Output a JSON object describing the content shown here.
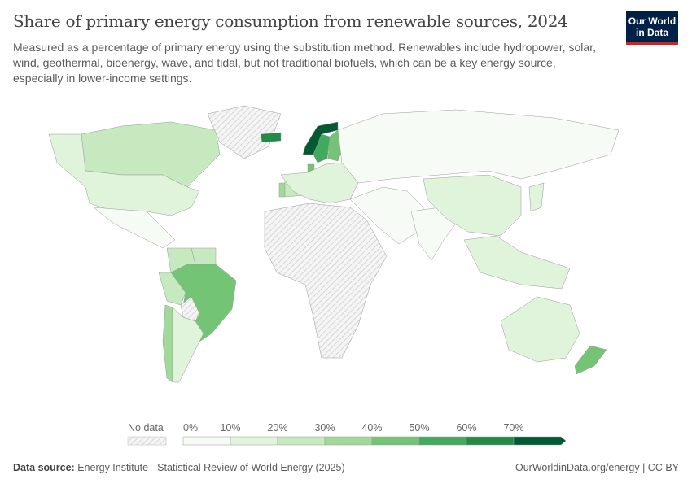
{
  "header": {
    "title": "Share of primary energy consumption from renewable sources, 2024",
    "subtitle": "Measured as a percentage of primary energy using the substitution method. Renewables include hydropower, solar, wind, geothermal, bioenergy, wave, and tidal, but not traditional biofuels, which can be a key energy source, especially in lower-income settings.",
    "logo_text": "Our World in Data"
  },
  "legend": {
    "no_data_label": "No data",
    "ticks": [
      "0%",
      "10%",
      "20%",
      "30%",
      "40%",
      "50%",
      "60%",
      "70%"
    ],
    "colors": [
      "#f7fbf5",
      "#e0f3db",
      "#c7e9c0",
      "#a1d99b",
      "#74c476",
      "#41ab5d",
      "#238b45",
      "#005a32"
    ],
    "no_data_pattern": "hatched-gray"
  },
  "footer": {
    "source_label": "Data source:",
    "source_text": "Energy Institute - Statistical Review of World Energy (2025)",
    "link": "OurWorldinData.org/energy | CC BY"
  },
  "chart_data": {
    "type": "choropleth",
    "year": 2024,
    "unit": "%",
    "bins": [
      0,
      10,
      20,
      30,
      40,
      50,
      60,
      70
    ],
    "countries": [
      {
        "name": "Canada",
        "value": 28
      },
      {
        "name": "United States",
        "value": 10
      },
      {
        "name": "Mexico",
        "value": 7
      },
      {
        "name": "Colombia",
        "value": 28
      },
      {
        "name": "Venezuela",
        "value": 25
      },
      {
        "name": "Peru",
        "value": 25
      },
      {
        "name": "Brazil",
        "value": 48
      },
      {
        "name": "Chile",
        "value": 32
      },
      {
        "name": "Argentina",
        "value": 12
      },
      {
        "name": "Bolivia",
        "value": null
      },
      {
        "name": "Greenland",
        "value": null
      },
      {
        "name": "Iceland",
        "value": 65
      },
      {
        "name": "Norway",
        "value": 72
      },
      {
        "name": "Sweden",
        "value": 55
      },
      {
        "name": "Finland",
        "value": 45
      },
      {
        "name": "Denmark",
        "value": 42
      },
      {
        "name": "Austria",
        "value": 35
      },
      {
        "name": "Portugal",
        "value": 32
      },
      {
        "name": "Spain",
        "value": 25
      },
      {
        "name": "Europe (other)",
        "value": 15
      },
      {
        "name": "Russia",
        "value": 6
      },
      {
        "name": "Middle East",
        "value": 2
      },
      {
        "name": "Africa",
        "value": null
      },
      {
        "name": "India",
        "value": 9
      },
      {
        "name": "China",
        "value": 17
      },
      {
        "name": "Japan",
        "value": 12
      },
      {
        "name": "Southeast Asia",
        "value": 12
      },
      {
        "name": "Australia",
        "value": 12
      },
      {
        "name": "New Zealand",
        "value": 42
      }
    ]
  }
}
